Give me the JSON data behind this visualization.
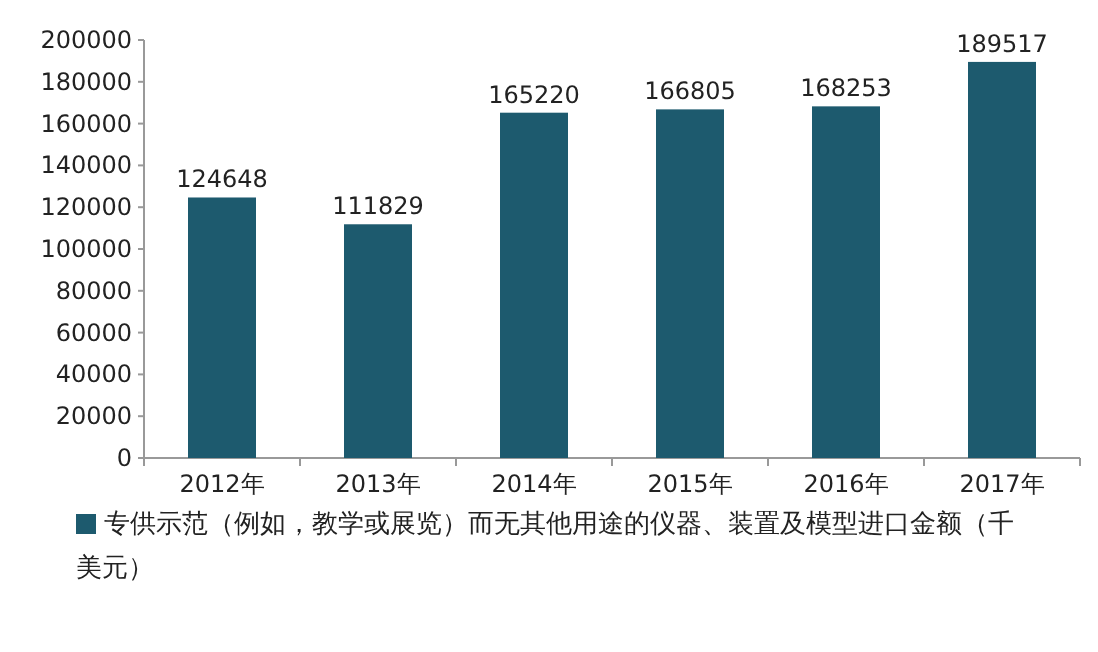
{
  "chart_data": {
    "type": "bar",
    "categories": [
      "2012年",
      "2013年",
      "2014年",
      "2015年",
      "2016年",
      "2017年"
    ],
    "series": [
      {
        "name": "专供示范（例如，教学或展览）而无其他用途的仪器、装置及模型进口金额（千美元）",
        "color": "#1d5a6e",
        "values": [
          124648,
          111829,
          165220,
          166805,
          168253,
          189517
        ]
      }
    ],
    "ylim": [
      0,
      200000
    ],
    "yticks": [
      0,
      20000,
      40000,
      60000,
      80000,
      100000,
      120000,
      140000,
      160000,
      180000,
      200000
    ],
    "data_labels": true,
    "legend": "bottom",
    "grid": false
  }
}
